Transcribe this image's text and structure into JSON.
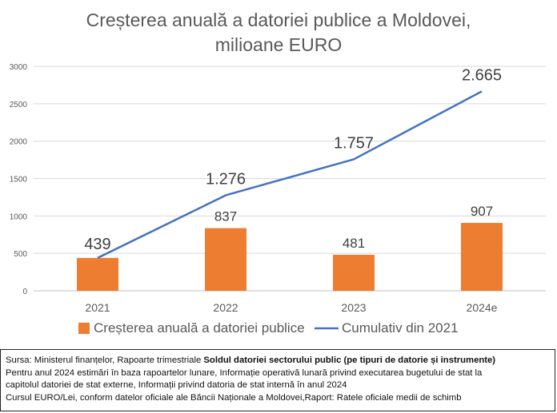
{
  "chart_data": {
    "type": "bar",
    "title_lines": [
      "Creșterea anuală a datoriei publice a Moldovei,",
      "milioane EURO"
    ],
    "categories": [
      "2021",
      "2022",
      "2023",
      "2024e"
    ],
    "series": [
      {
        "name": "Creșterea anuală a datoriei publice",
        "kind": "bar",
        "color": "#ED7D31",
        "values": [
          439,
          837,
          481,
          907
        ],
        "labels": [
          "439",
          "837",
          "481",
          "907"
        ]
      },
      {
        "name": "Cumulativ din 2021",
        "kind": "line",
        "color": "#4472C4",
        "values": [
          439,
          1276,
          1757,
          2665
        ],
        "labels": [
          "",
          "1.276",
          "1.757",
          "2.665"
        ]
      }
    ],
    "ylim": [
      0,
      3000
    ],
    "yticks": [
      0,
      500,
      1000,
      1500,
      2000,
      2500,
      3000
    ],
    "grid": true,
    "legend_position": "bottom"
  },
  "notes": {
    "line1_prefix": "Sursa: Ministerul finanțelor, Rapoarte trimestriale ",
    "line1_bold": "Soldul datoriei sectorului public (pe tipuri de datorie și instrumente)",
    "line2": "Pentru anul 2024 estimări în baza rapoartelor lunare,  Informație operativă lunară privind executarea bugetului de stat la",
    "line3": "capitolul datoriei de stat externe, Informații privind datoria de stat internă în anul 2024",
    "line4": "Cursul EURO/Lei, conform datelor oficiale ale Băncii Naționale a Moldovei,Raport: Ratele oficiale medii de schimb"
  }
}
